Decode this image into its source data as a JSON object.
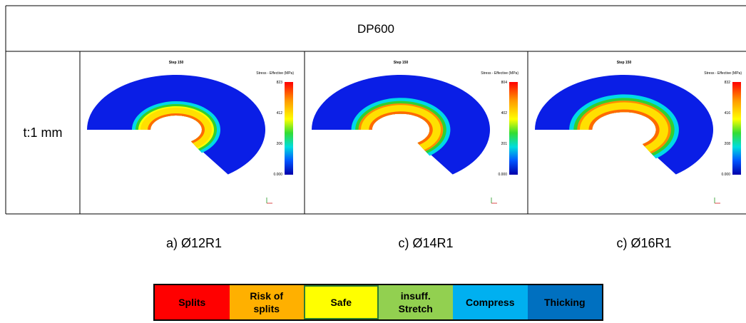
{
  "header": {
    "title": "DP600"
  },
  "row": {
    "label": "t:1 mm"
  },
  "panels": [
    {
      "step": "Step 150",
      "legend_title": "Stress - Effective (MPa)",
      "scale": [
        "823",
        "412",
        "206",
        "0.000"
      ],
      "caption": "a) Ø12R1"
    },
    {
      "step": "Step 150",
      "legend_title": "Stress - Effective (MPa)",
      "scale": [
        "804",
        "402",
        "201",
        "0.000"
      ],
      "caption": "c) Ø14R1"
    },
    {
      "step": "Step 150",
      "legend_title": "Stress - Effective (MPa)",
      "scale": [
        "832",
        "416",
        "208",
        "0.000"
      ],
      "caption": "c) Ø16R1"
    }
  ],
  "legend": [
    "Splits",
    "Risk of splits",
    "Safe",
    "insuff. Stretch",
    "Compress",
    "Thicking"
  ]
}
